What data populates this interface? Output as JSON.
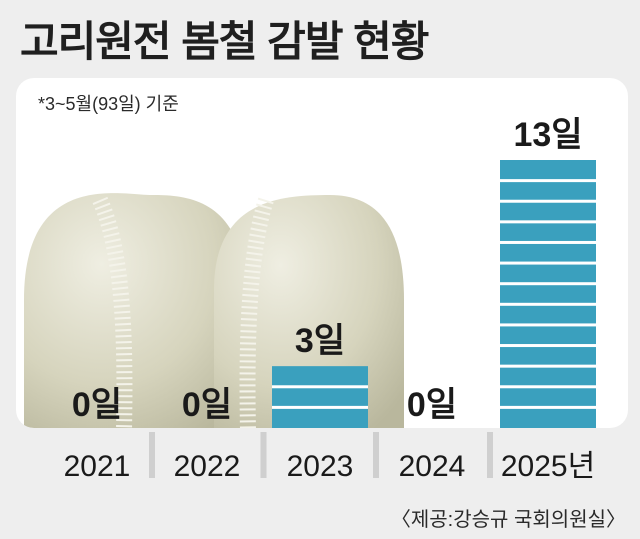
{
  "chart_data": {
    "type": "bar",
    "title": "고리원전 봄철 감발 현황",
    "note": "*3~5월(93일) 기준",
    "source": "〈제공:강승규 국회의원실〉",
    "categories": [
      "2021",
      "2022",
      "2023",
      "2024",
      "2025년"
    ],
    "values": [
      0,
      0,
      3,
      0,
      13
    ],
    "value_labels": [
      "0일",
      "0일",
      "3일",
      "0일",
      "13일"
    ],
    "unit": "일",
    "ylim": [
      0,
      13
    ],
    "grid": false,
    "legend": "none",
    "colors": {
      "bar": "#3aa0be",
      "bar_stripe": "#ffffff",
      "panel": "#ffffff",
      "background": "#eeeeee",
      "dome": "#d8d6bf"
    }
  }
}
